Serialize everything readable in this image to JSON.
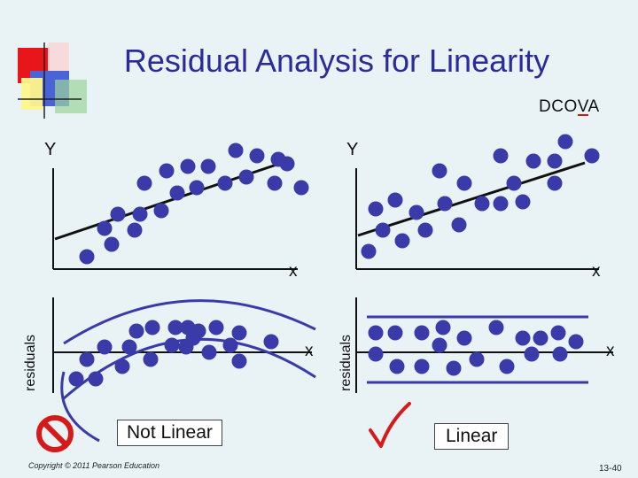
{
  "title": "Residual Analysis for Linearity",
  "section_tag": {
    "before": "DCO",
    "highlight": "V",
    "after": "A"
  },
  "axes": {
    "y_label": "Y",
    "x_label": "x",
    "residuals_label": "residuals"
  },
  "verdicts": {
    "left": "Not Linear",
    "right": "Linear"
  },
  "icons": {
    "left_verdict": "prohibition-icon",
    "right_verdict": "checkmark-icon"
  },
  "colors": {
    "point": "#3a3aa8",
    "title": "#2b2b9a",
    "band": "#3a3aa8",
    "prohibit": "#d61a1a",
    "check": "#d61a1a"
  },
  "footer": {
    "copyright": "Copyright © 2011 Pearson Education",
    "page": "13-40"
  },
  "panels": {
    "scatter_left": [
      [
        98,
        290
      ],
      [
        118,
        258
      ],
      [
        126,
        276
      ],
      [
        133,
        242
      ],
      [
        152,
        260
      ],
      [
        158,
        242
      ],
      [
        163,
        207
      ],
      [
        182,
        238
      ],
      [
        188,
        193
      ],
      [
        200,
        218
      ],
      [
        212,
        188
      ],
      [
        222,
        212
      ],
      [
        235,
        188
      ],
      [
        254,
        207
      ],
      [
        266,
        170
      ],
      [
        278,
        200
      ],
      [
        290,
        176
      ],
      [
        310,
        207
      ],
      [
        314,
        180
      ],
      [
        324,
        185
      ],
      [
        340,
        212
      ]
    ],
    "scatter_right": [
      [
        416,
        284
      ],
      [
        424,
        236
      ],
      [
        432,
        260
      ],
      [
        446,
        226
      ],
      [
        454,
        272
      ],
      [
        470,
        240
      ],
      [
        480,
        260
      ],
      [
        496,
        193
      ],
      [
        502,
        230
      ],
      [
        518,
        254
      ],
      [
        524,
        207
      ],
      [
        544,
        230
      ],
      [
        565,
        176
      ],
      [
        565,
        230
      ],
      [
        580,
        207
      ],
      [
        590,
        228
      ],
      [
        602,
        182
      ],
      [
        626,
        182
      ],
      [
        626,
        207
      ],
      [
        638,
        160
      ],
      [
        668,
        176
      ]
    ],
    "resid_left": [
      [
        86,
        428
      ],
      [
        98,
        406
      ],
      [
        108,
        428
      ],
      [
        118,
        392
      ],
      [
        138,
        414
      ],
      [
        146,
        392
      ],
      [
        154,
        374
      ],
      [
        170,
        406
      ],
      [
        172,
        370
      ],
      [
        194,
        390
      ],
      [
        198,
        370
      ],
      [
        210,
        392
      ],
      [
        212,
        370
      ],
      [
        218,
        382
      ],
      [
        224,
        374
      ],
      [
        236,
        398
      ],
      [
        244,
        370
      ],
      [
        260,
        390
      ],
      [
        270,
        376
      ],
      [
        270,
        408
      ],
      [
        306,
        386
      ]
    ],
    "resid_right": [
      [
        424,
        376
      ],
      [
        424,
        400
      ],
      [
        446,
        376
      ],
      [
        448,
        414
      ],
      [
        476,
        376
      ],
      [
        476,
        414
      ],
      [
        496,
        390
      ],
      [
        500,
        370
      ],
      [
        512,
        416
      ],
      [
        524,
        382
      ],
      [
        538,
        406
      ],
      [
        560,
        370
      ],
      [
        572,
        414
      ],
      [
        590,
        382
      ],
      [
        600,
        400
      ],
      [
        610,
        382
      ],
      [
        630,
        376
      ],
      [
        632,
        400
      ],
      [
        650,
        386
      ]
    ]
  }
}
